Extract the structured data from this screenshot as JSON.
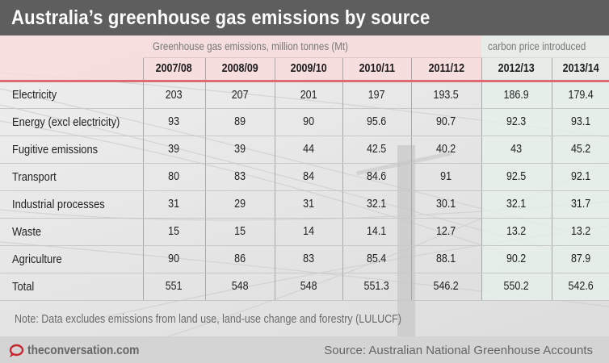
{
  "title": "Australia’s greenhouse gas emissions by source",
  "colors": {
    "title_bg": "#5e5e5e",
    "accent_line": "#e06a74",
    "pink_zone": "#f8dadc",
    "green_zone": "#e6f2ea",
    "logo_red": "#c8262e"
  },
  "chart_data": {
    "type": "table",
    "title": "Australia’s greenhouse gas emissions by source",
    "group_headers": [
      {
        "label": "Greenhouse gas emissions, million tonnes (Mt)",
        "columns": [
          "2007/08",
          "2008/09",
          "2009/10",
          "2010/11",
          "2011/12"
        ]
      },
      {
        "label": "carbon price introduced",
        "columns": [
          "2012/13",
          "2013/14"
        ]
      }
    ],
    "columns": [
      "2007/08",
      "2008/09",
      "2009/10",
      "2010/11",
      "2011/12",
      "2012/13",
      "2013/14"
    ],
    "rows": [
      {
        "label": "Electricity",
        "values": [
          "203",
          "207",
          "201",
          "197",
          "193.5",
          "186.9",
          "179.4"
        ]
      },
      {
        "label": "Energy (excl electricity)",
        "values": [
          "93",
          "89",
          "90",
          "95.6",
          "90.7",
          "92.3",
          "93.1"
        ]
      },
      {
        "label": "Fugitive emissions",
        "values": [
          "39",
          "39",
          "44",
          "42.5",
          "40.2",
          "43",
          "45.2"
        ]
      },
      {
        "label": "Transport",
        "values": [
          "80",
          "83",
          "84",
          "84.6",
          "91",
          "92.5",
          "92.1"
        ]
      },
      {
        "label": "Industrial processes",
        "values": [
          "31",
          "29",
          "31",
          "32.1",
          "30.1",
          "32.1",
          "31.7"
        ]
      },
      {
        "label": "Waste",
        "values": [
          "15",
          "15",
          "14",
          "14.1",
          "12.7",
          "13.2",
          "13.2"
        ]
      },
      {
        "label": "Agriculture",
        "values": [
          "90",
          "86",
          "83",
          "85.4",
          "88.1",
          "90.2",
          "87.9"
        ]
      },
      {
        "label": "Total",
        "values": [
          "551",
          "548",
          "548",
          "551.3",
          "546.2",
          "550.2",
          "542.6"
        ]
      }
    ],
    "units": "million tonnes (Mt)"
  },
  "note": "Note: Data excludes emissions from land use, land-use change and forestry (LULUCF)",
  "footer": {
    "logo_text": "theconversation.com",
    "logo_icon": "speech-bubble-icon",
    "source": "Source: Australian National Greenhouse Accounts"
  }
}
